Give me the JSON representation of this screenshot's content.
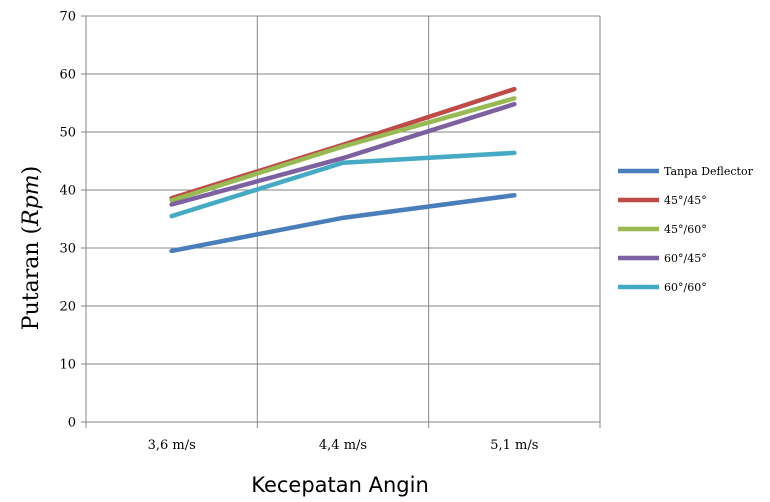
{
  "chart_data": {
    "type": "line",
    "title": "",
    "xlabel": "Kecepatan Angin",
    "ylabel": {
      "main": "Putaran (",
      "unit": "Rpm",
      "close": ")"
    },
    "categories": [
      "3,6 m/s",
      "4,4 m/s",
      "5,1 m/s"
    ],
    "ylim": [
      0,
      70
    ],
    "yticks": [
      0,
      10,
      20,
      30,
      40,
      50,
      60,
      70
    ],
    "grid": true,
    "legend_position": "right",
    "series": [
      {
        "name": "Tanpa Deflector",
        "color": "#4a7ebb",
        "values": [
          29.5,
          35.2,
          39.1
        ]
      },
      {
        "name": "45°/45°",
        "color": "#be4b48",
        "values": [
          38.6,
          47.8,
          57.4
        ]
      },
      {
        "name": "45°/60°",
        "color": "#98b954",
        "values": [
          38.2,
          47.5,
          55.8
        ]
      },
      {
        "name": "60°/45°",
        "color": "#7d60a0",
        "values": [
          37.5,
          45.5,
          54.8
        ]
      },
      {
        "name": "60°/60°",
        "color": "#46aac4",
        "values": [
          35.5,
          44.7,
          46.4
        ]
      }
    ]
  }
}
